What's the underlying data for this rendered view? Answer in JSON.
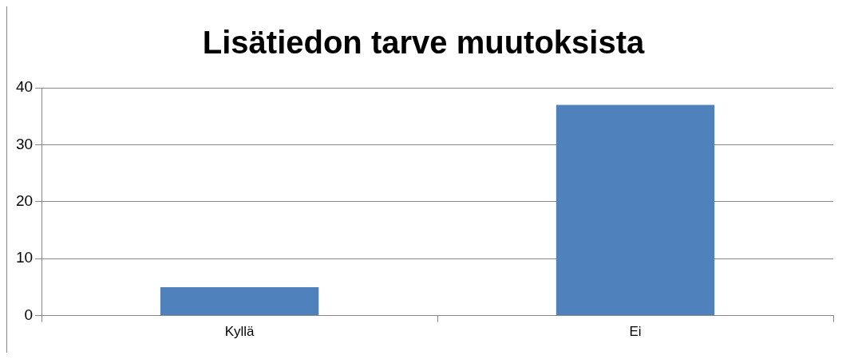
{
  "chart_data": {
    "type": "bar",
    "title": "Lisätiedon tarve muutoksista",
    "categories": [
      "Kyllä",
      "Ei"
    ],
    "values": [
      5,
      37
    ],
    "color": "#4f81bd",
    "ylim": [
      0,
      40
    ],
    "yticks": [
      0,
      10,
      20,
      30,
      40
    ],
    "grid": "y",
    "legend": false
  }
}
